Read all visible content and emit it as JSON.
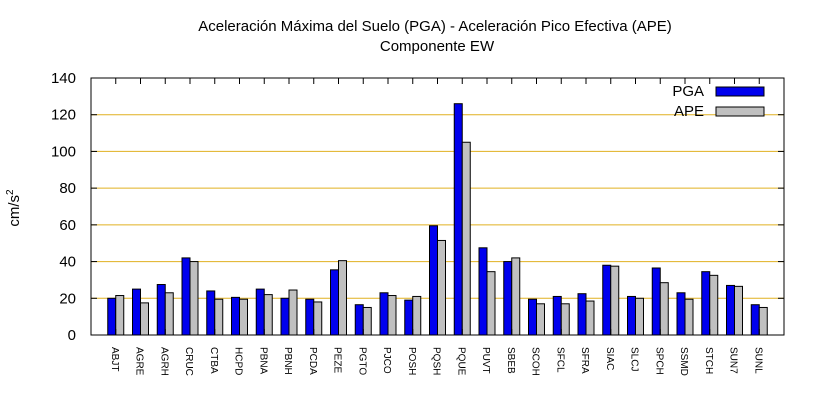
{
  "chart_data": {
    "type": "bar",
    "title": "Aceleración Máxima del Suelo (PGA) -  Aceleración Pico Efectiva (APE)",
    "subtitle": "Componente EW",
    "ylabel": "cm/s",
    "ylabel_sup": "2",
    "xlabel": "",
    "ylim": [
      0,
      140
    ],
    "yticks": [
      0,
      20,
      40,
      60,
      80,
      100,
      120,
      140
    ],
    "grid": "horizontal",
    "legend_position": "top-right",
    "categories": [
      "ABJT",
      "AGRE",
      "AGRH",
      "CRUC",
      "CTBA",
      "HCPD",
      "PBNA",
      "PBNH",
      "PCDA",
      "PEZE",
      "PGTO",
      "PJCO",
      "POSH",
      "PQSH",
      "PQUE",
      "PUVT",
      "SBEB",
      "SCOH",
      "SFCL",
      "SFRA",
      "SIAC",
      "SLCJ",
      "SPCH",
      "SSMD",
      "STCH",
      "SUN7",
      "SUNL"
    ],
    "series": [
      {
        "name": "PGA",
        "color": "#0000ee",
        "values": [
          20,
          25,
          27.5,
          42,
          24,
          20.5,
          25,
          20,
          19.5,
          35.5,
          16.5,
          23,
          19,
          59.5,
          126,
          47.5,
          40,
          19.5,
          21,
          22.5,
          38,
          21,
          36.5,
          23,
          34.5,
          27,
          16.5
        ]
      },
      {
        "name": "APE",
        "color": "#c0c0c0",
        "values": [
          21.5,
          17.5,
          23,
          40,
          19.5,
          19.5,
          22,
          24.5,
          18,
          40.5,
          15,
          21.5,
          21,
          51.5,
          105,
          34.5,
          42,
          17,
          17,
          18.5,
          37.5,
          20,
          28.5,
          19.5,
          32.5,
          26.5,
          15
        ]
      }
    ],
    "colors": {
      "grid": "#e0b020",
      "axis": "#000000"
    }
  }
}
